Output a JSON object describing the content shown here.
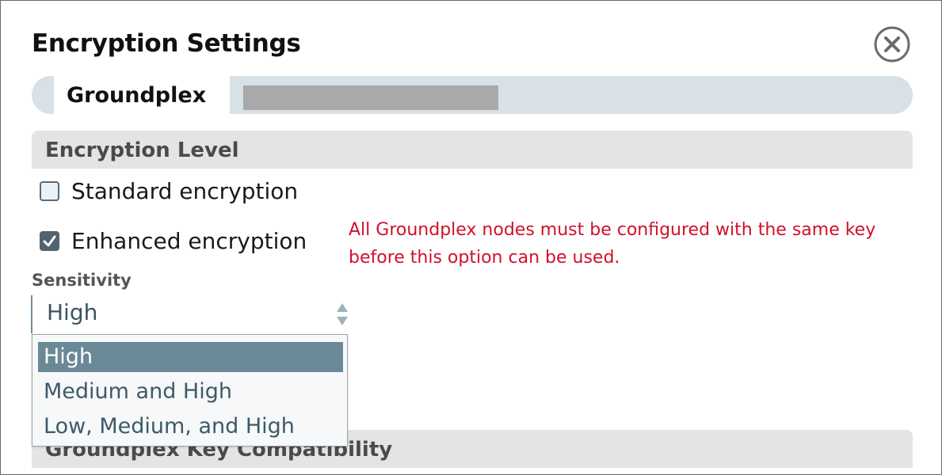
{
  "dialog": {
    "title": "Encryption Settings",
    "close_icon": "circle-x-icon"
  },
  "groundplex": {
    "tab_label": "Groundplex"
  },
  "encryption_level": {
    "header": "Encryption Level",
    "options": [
      {
        "label": "Standard encryption",
        "checked": false
      },
      {
        "label": "Enhanced encryption",
        "checked": true
      }
    ],
    "warning": "All Groundplex nodes must be configured with the same key before this option can be used."
  },
  "sensitivity": {
    "label": "Sensitivity",
    "selected": "High",
    "options": [
      "High",
      "Medium and High",
      "Low, Medium, and High"
    ]
  },
  "key_compatibility": {
    "header": "Groundplex Key Compatibility"
  },
  "colors": {
    "warning": "#d0112b",
    "selected_option_bg": "#6a8896",
    "groundplex_bar": "#d8e1e5",
    "section_header_bg": "#e4e4e4"
  }
}
